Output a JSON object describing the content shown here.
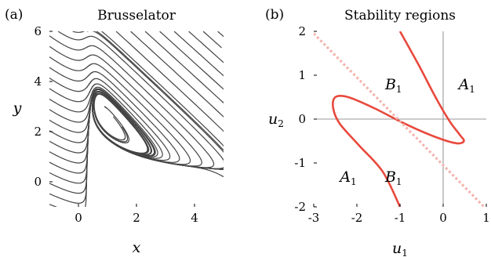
{
  "figure": {
    "panel_a": {
      "label": "(a)",
      "title": "Brusselator",
      "xlabel": "x",
      "ylabel": "y"
    },
    "panel_b": {
      "label": "(b)",
      "title": "Stability regions",
      "xlabel_base": "u",
      "xlabel_sub": "1",
      "ylabel_base": "u",
      "ylabel_sub": "2",
      "regions": [
        {
          "base": "B",
          "sub": "1",
          "u1": -1.15,
          "u2": 0.8
        },
        {
          "base": "A",
          "sub": "1",
          "u1": 0.55,
          "u2": 0.8
        },
        {
          "base": "A",
          "sub": "1",
          "u1": -2.2,
          "u2": -1.3
        },
        {
          "base": "B",
          "sub": "1",
          "u1": -1.15,
          "u2": -1.3
        }
      ]
    }
  },
  "chart_data": [
    {
      "type": "line",
      "subtype": "phase-portrait",
      "title": "Brusselator",
      "xlabel": "x",
      "ylabel": "y",
      "xlim": [
        -1,
        5
      ],
      "ylim": [
        -1,
        6
      ],
      "xticks": [
        0,
        2,
        4
      ],
      "yticks": [
        0,
        2,
        4,
        6
      ],
      "xtick_labels": [
        "0",
        "2",
        "4"
      ],
      "ytick_labels": [
        "0",
        "2",
        "4",
        "6"
      ],
      "system": {
        "a": 1,
        "b": 2.5
      },
      "equilibrium": [
        1,
        2.5
      ],
      "grid": false,
      "line_color": "#444444"
    },
    {
      "type": "line",
      "title": "Stability regions",
      "xlabel": "u1",
      "ylabel": "u2",
      "xlim": [
        -3,
        1
      ],
      "ylim": [
        -2,
        2
      ],
      "xticks": [
        -3,
        -2,
        -1,
        0,
        1
      ],
      "yticks": [
        -2,
        -1,
        0,
        1,
        2
      ],
      "xtick_labels": [
        "-3",
        "-2",
        "-1",
        "0",
        "1"
      ],
      "ytick_labels": [
        "-2",
        "-1",
        "0",
        "1",
        "2"
      ],
      "reference_lines": {
        "u1": 0,
        "u2": 0
      },
      "series": [
        {
          "style": "solid",
          "color": "#e8493d",
          "points": [
            [
              -1.0,
              2.0
            ],
            [
              -0.55,
              1.2
            ],
            [
              -0.15,
              0.45
            ],
            [
              0.15,
              -0.05
            ],
            [
              0.38,
              -0.35
            ],
            [
              0.48,
              -0.5
            ],
            [
              0.3,
              -0.55
            ],
            [
              -0.2,
              -0.4
            ],
            [
              -0.9,
              -0.1
            ],
            [
              -1.6,
              0.25
            ],
            [
              -2.2,
              0.5
            ],
            [
              -2.5,
              0.5
            ],
            [
              -2.55,
              0.25
            ],
            [
              -2.4,
              -0.1
            ],
            [
              -1.95,
              -0.6
            ],
            [
              -1.4,
              -1.2
            ],
            [
              -1.0,
              -2.0
            ]
          ]
        },
        {
          "style": "dotted",
          "color": "#f4b4ae",
          "points": [
            [
              -3.0,
              1.95
            ],
            [
              1.0,
              -2.05
            ]
          ]
        }
      ]
    }
  ]
}
